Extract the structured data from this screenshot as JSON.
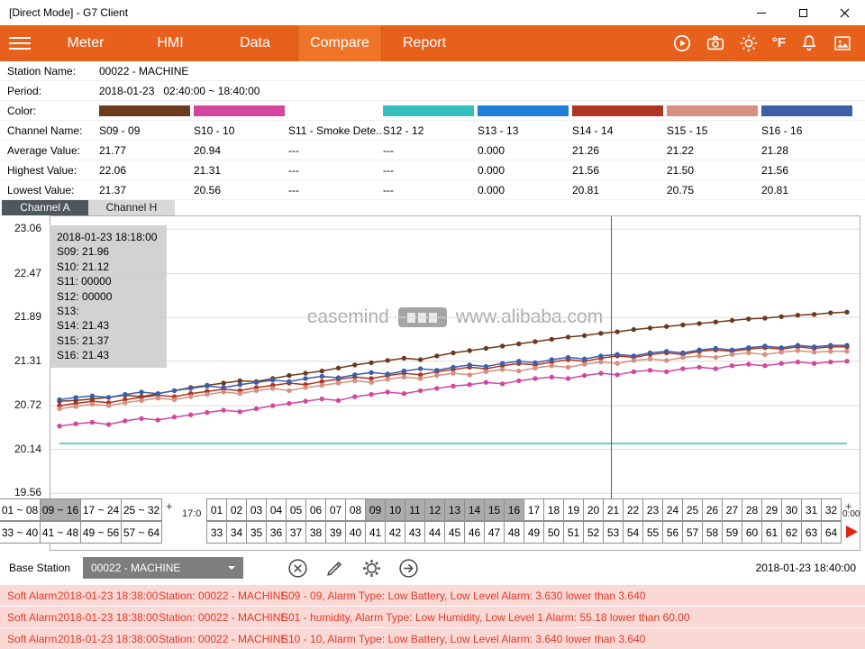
{
  "window": {
    "title": "[Direct Mode] - G7 Client"
  },
  "nav": {
    "items": [
      "Meter",
      "HMI",
      "Data",
      "Compare",
      "Report"
    ],
    "active": "Compare",
    "fahrenheit": "°F",
    "icon_names": [
      "run-icon",
      "camera-icon",
      "brightness-icon",
      "fahrenheit-icon",
      "alarm-bell-icon",
      "snapshot-icon"
    ],
    "accent_color": "#E8611C"
  },
  "info": {
    "labels": {
      "station": "Station Name:",
      "period": "Period:",
      "color": "Color:",
      "channel": "Channel Name:",
      "average": "Average Value:",
      "highest": "Highest Value:",
      "lowest": "Lowest Value:"
    },
    "station_value": "00022 - MACHINE",
    "period_value": "2018-01-23   02:40:00 ~ 18:40:00",
    "channels": [
      {
        "name": "S09 - 09",
        "color": "#6B3B1E",
        "average": "21.77",
        "highest": "22.06",
        "lowest": "21.37"
      },
      {
        "name": "S10 - 10",
        "color": "#D2479D",
        "average": "20.94",
        "highest": "21.31",
        "lowest": "20.56"
      },
      {
        "name": "S11 - Smoke Dete...",
        "color": "#FFFFFF",
        "average": "---",
        "highest": "---",
        "lowest": "---"
      },
      {
        "name": "S12 - 12",
        "color": "#35BEBE",
        "average": "---",
        "highest": "---",
        "lowest": "---"
      },
      {
        "name": "S13 - 13",
        "color": "#1F7FD4",
        "average": "0.000",
        "highest": "0.000",
        "lowest": "0.000"
      },
      {
        "name": "S14 - 14",
        "color": "#B03423",
        "average": "21.26",
        "highest": "21.56",
        "lowest": "20.81"
      },
      {
        "name": "S15 - 15",
        "color": "#D5907F",
        "average": "21.22",
        "highest": "21.50",
        "lowest": "20.75"
      },
      {
        "name": "S16 - 16",
        "color": "#3F5EA8",
        "average": "21.28",
        "highest": "21.56",
        "lowest": "20.81"
      }
    ]
  },
  "tabs": [
    {
      "label": "Channel A",
      "active": true
    },
    {
      "label": "Channel H",
      "active": false
    }
  ],
  "tooltip": {
    "lines": [
      "2018-01-23 18:18:00",
      "S09: 21.96",
      "S10: 21.12",
      "S11: 00000",
      "S12: 00000",
      "S13:",
      "S14: 21.43",
      "S15: 21.37",
      "S16: 21.43"
    ]
  },
  "watermark": {
    "left": "easemind",
    "right": "www.alibaba.com"
  },
  "chart_data": {
    "type": "line",
    "title": "",
    "x_start": "02:40:00",
    "x_end": "18:40:00",
    "x_interval_minutes": 20,
    "ylim": [
      18.81,
      23.23
    ],
    "yticks": [
      23.06,
      22.47,
      21.89,
      21.31,
      20.72,
      20.14,
      19.56
    ],
    "cursor_x_fraction": 0.694,
    "grid": true,
    "legend_position": "none",
    "series": [
      {
        "name": "S09",
        "color": "#6B3B1E",
        "values": [
          20.78,
          20.79,
          20.81,
          20.83,
          20.86,
          20.84,
          20.88,
          20.92,
          20.96,
          20.99,
          21.02,
          21.05,
          21.04,
          21.08,
          21.12,
          21.15,
          21.18,
          21.22,
          21.26,
          21.29,
          21.32,
          21.35,
          21.33,
          21.38,
          21.42,
          21.45,
          21.48,
          21.51,
          21.54,
          21.57,
          21.6,
          21.63,
          21.65,
          21.68,
          21.7,
          21.73,
          21.75,
          21.77,
          21.79,
          21.81,
          21.83,
          21.85,
          21.87,
          21.88,
          21.9,
          21.92,
          21.93,
          21.95,
          21.96
        ]
      },
      {
        "name": "S10",
        "color": "#D2479D",
        "values": [
          20.45,
          20.48,
          20.5,
          20.47,
          20.52,
          20.55,
          20.53,
          20.57,
          20.6,
          20.63,
          20.66,
          20.64,
          20.68,
          20.72,
          20.75,
          20.78,
          20.81,
          20.79,
          20.84,
          20.87,
          20.9,
          20.88,
          20.92,
          20.95,
          20.98,
          21.0,
          21.03,
          21.01,
          21.05,
          21.08,
          21.1,
          21.08,
          21.12,
          21.15,
          21.13,
          21.17,
          21.19,
          21.17,
          21.21,
          21.23,
          21.21,
          21.25,
          21.27,
          21.25,
          21.28,
          21.3,
          21.28,
          21.3,
          21.31
        ]
      },
      {
        "name": "S12",
        "color": "#35BEBE",
        "constant": 20.22
      },
      {
        "name": "S14",
        "color": "#B03423",
        "values": [
          20.72,
          20.75,
          20.78,
          20.76,
          20.8,
          20.83,
          20.86,
          20.84,
          20.88,
          20.91,
          20.94,
          20.92,
          20.96,
          20.99,
          21.02,
          21.0,
          21.04,
          21.07,
          21.1,
          21.08,
          21.12,
          21.15,
          21.13,
          21.17,
          21.2,
          21.23,
          21.21,
          21.25,
          21.28,
          21.26,
          21.3,
          21.33,
          21.31,
          21.35,
          21.38,
          21.36,
          21.4,
          21.42,
          21.4,
          21.44,
          21.46,
          21.44,
          21.47,
          21.49,
          21.47,
          21.5,
          21.48,
          21.5,
          21.5
        ]
      },
      {
        "name": "S15",
        "color": "#D5907F",
        "values": [
          20.68,
          20.71,
          20.74,
          20.72,
          20.76,
          20.79,
          20.82,
          20.8,
          20.84,
          20.87,
          20.9,
          20.88,
          20.92,
          20.95,
          20.92,
          20.96,
          20.99,
          21.02,
          21.05,
          21.03,
          21.07,
          21.1,
          21.08,
          21.12,
          21.15,
          21.13,
          21.17,
          21.2,
          21.18,
          21.22,
          21.25,
          21.23,
          21.27,
          21.3,
          21.28,
          21.32,
          21.34,
          21.32,
          21.36,
          21.38,
          21.36,
          21.4,
          21.42,
          21.4,
          21.43,
          21.45,
          21.43,
          21.44,
          21.44
        ]
      },
      {
        "name": "S16",
        "color": "#3F5EA8",
        "values": [
          20.8,
          20.83,
          20.85,
          20.83,
          20.87,
          20.9,
          20.88,
          20.92,
          20.95,
          20.98,
          20.96,
          21.0,
          21.03,
          21.06,
          21.04,
          21.08,
          21.11,
          21.09,
          21.13,
          21.16,
          21.14,
          21.18,
          21.21,
          21.19,
          21.23,
          21.26,
          21.24,
          21.28,
          21.31,
          21.29,
          21.33,
          21.36,
          21.34,
          21.38,
          21.4,
          21.38,
          21.42,
          21.44,
          21.42,
          21.46,
          21.48,
          21.46,
          21.49,
          21.51,
          21.49,
          21.52,
          21.5,
          21.52,
          21.52
        ]
      }
    ]
  },
  "pagination": {
    "rows": [
      {
        "groups": [
          "01 ~ 08",
          "09 ~ 16",
          "17 ~ 24",
          "25 ~ 32"
        ],
        "selected_group": "09 ~ 16",
        "cells": [
          "01",
          "02",
          "03",
          "04",
          "05",
          "06",
          "07",
          "08",
          "09",
          "10",
          "11",
          "12",
          "13",
          "14",
          "15",
          "16",
          "17",
          "18",
          "19",
          "20",
          "21",
          "22",
          "23",
          "24",
          "25",
          "26",
          "27",
          "28",
          "29",
          "30",
          "31",
          "32"
        ],
        "selected_cells": [
          "09",
          "10",
          "11",
          "12",
          "13",
          "14",
          "15",
          "16"
        ],
        "gap_text": {
          "plus": "+",
          "time": "17:0"
        },
        "end_text": {
          "plus": "+",
          "time": "0:00"
        },
        "end_arrow": false
      },
      {
        "groups": [
          "33 ~ 40",
          "41 ~ 48",
          "49 ~ 56",
          "57 ~ 64"
        ],
        "selected_group": "",
        "cells": [
          "33",
          "34",
          "35",
          "36",
          "37",
          "38",
          "39",
          "40",
          "41",
          "42",
          "43",
          "44",
          "45",
          "46",
          "47",
          "48",
          "49",
          "50",
          "51",
          "52",
          "53",
          "54",
          "55",
          "56",
          "57",
          "58",
          "59",
          "60",
          "61",
          "62",
          "63",
          "64"
        ],
        "selected_cells": [],
        "gap_text": null,
        "end_text": null,
        "end_arrow": true
      }
    ]
  },
  "footer": {
    "base_station_label": "Base Station",
    "dropdown_value": "00022 - MACHINE",
    "timestamp": "2018-01-23 18:40:00",
    "icon_names": [
      "clear-icon",
      "edit-icon",
      "settings-icon",
      "go-icon"
    ]
  },
  "alarms": [
    {
      "type": "Soft Alarm",
      "time": "2018-01-23 18:38:00",
      "station": "Station: 00022 - MACHINE",
      "message": "S09 - 09, Alarm Type: Low Battery, Low Level Alarm: 3.630 lower than 3.640"
    },
    {
      "type": "Soft Alarm",
      "time": "2018-01-23 18:38:00",
      "station": "Station: 00022 - MACHINE",
      "message": "S01 - humidity, Alarm Type: Low Humidity, Low Level 1 Alarm: 55.18 lower than 60.00"
    },
    {
      "type": "Soft Alarm",
      "time": "2018-01-23 18:38:00",
      "station": "Station: 00022 - MACHINE",
      "message": "S10 - 10, Alarm Type: Low Battery, Low Level Alarm: 3.640 lower than 3.640"
    }
  ]
}
